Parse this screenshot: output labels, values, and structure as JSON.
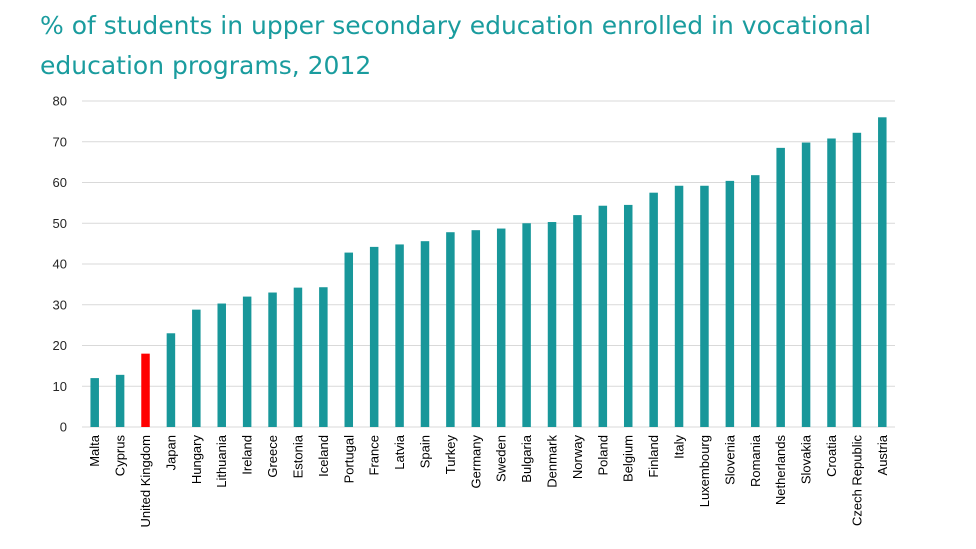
{
  "title": "% of students in upper secondary education enrolled in vocational education programs, 2012",
  "colors": {
    "title": "#1a9c9e",
    "bar": "#18979a",
    "highlight": "#ff0000",
    "grid": "#d9d9d9"
  },
  "chart_data": {
    "type": "bar",
    "title": "% of students in upper secondary education enrolled in vocational education programs, 2012",
    "xlabel": "",
    "ylabel": "",
    "ylim": [
      0,
      80
    ],
    "yticks": [
      0,
      10,
      20,
      30,
      40,
      50,
      60,
      70,
      80
    ],
    "grid": true,
    "legend": "none",
    "categories": [
      "Malta",
      "Cyprus",
      "United Kingdom",
      "Japan",
      "Hungary",
      "Lithuania",
      "Ireland",
      "Greece",
      "Estonia",
      "Iceland",
      "Portugal",
      "France",
      "Latvia",
      "Spain",
      "Turkey",
      "Germany",
      "Sweden",
      "Bulgaria",
      "Denmark",
      "Norway",
      "Poland",
      "Belgium",
      "Finland",
      "Italy",
      "Luxembourg",
      "Slovenia",
      "Romania",
      "Netherlands",
      "Slovakia",
      "Croatia",
      "Czech Republic",
      "Austria"
    ],
    "values": [
      12,
      12.8,
      18,
      23,
      28.8,
      30.3,
      32,
      33,
      34.2,
      34.3,
      42.8,
      44.2,
      44.8,
      45.6,
      47.8,
      48.3,
      48.7,
      50,
      50.3,
      52,
      54.3,
      54.5,
      57.5,
      59.2,
      59.2,
      60.4,
      61.8,
      68.5,
      69.8,
      70.8,
      72.2,
      76
    ],
    "highlight_category": "United Kingdom"
  }
}
